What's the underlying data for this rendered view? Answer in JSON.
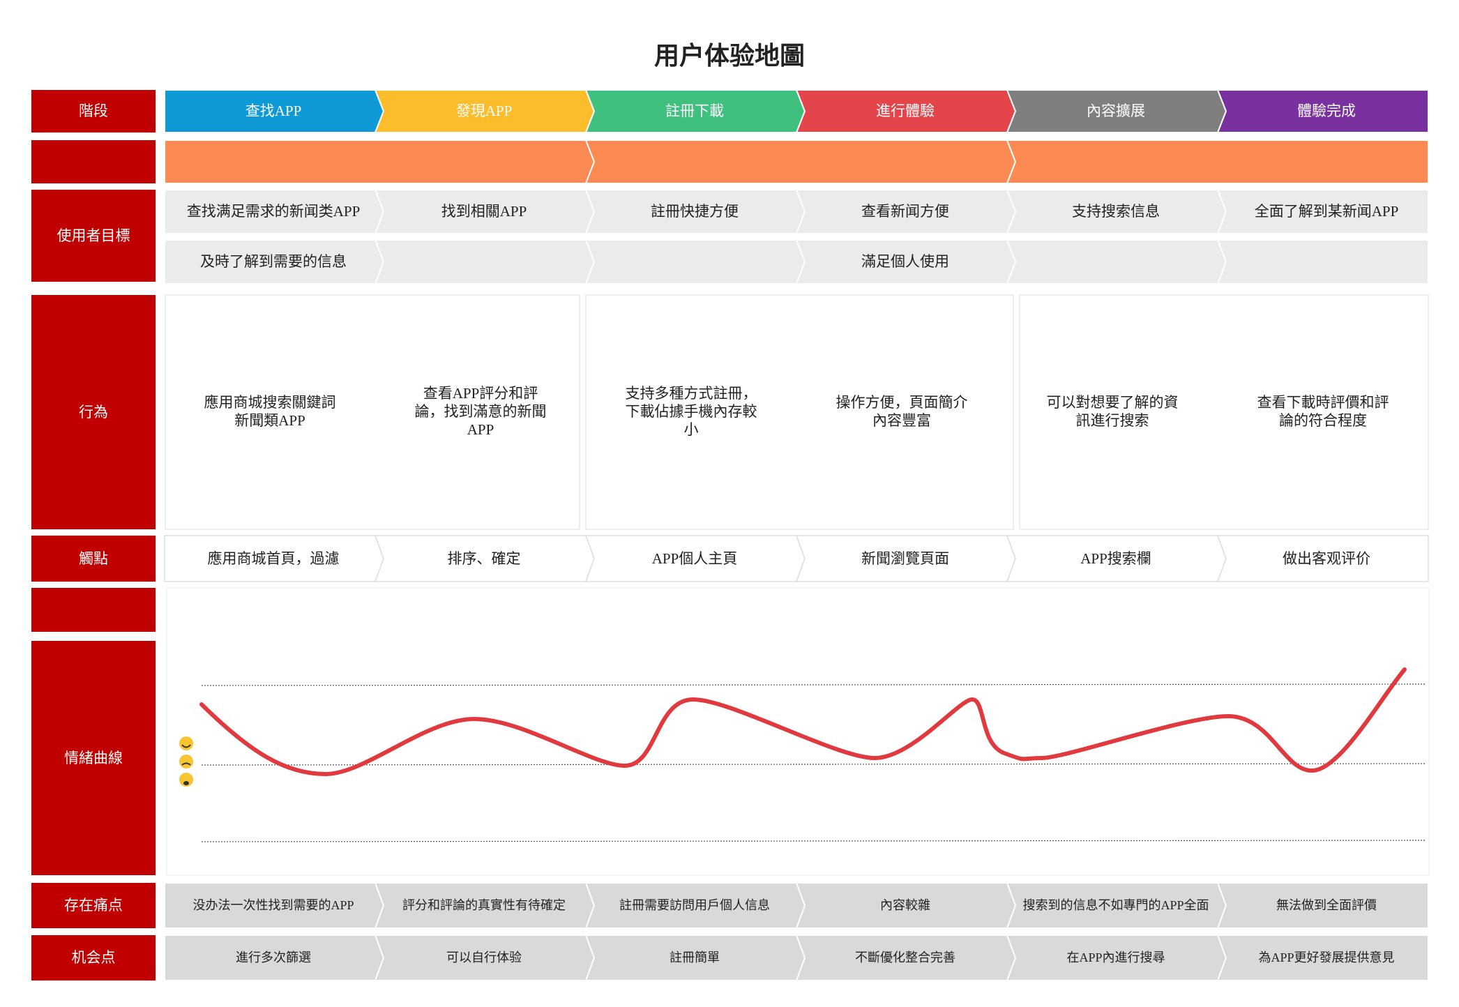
{
  "title": "用户体验地圖",
  "row_labels": {
    "stage": "階段",
    "goals": "使用者目標",
    "actions": "行為",
    "touchpoints": "觸點",
    "emotion": "情緒曲線",
    "pain": "存在痛点",
    "opportunity": "机会点"
  },
  "stages": [
    {
      "name": "查找APP",
      "goals": [
        "查找满足需求的新闻类APP",
        "及時了解到需要的信息"
      ],
      "action": "應用商城搜索關鍵詞新聞類APP",
      "touchpoint": "應用商城首頁，過濾",
      "pain": "没办法一次性找到需要的APP",
      "opportunity": "進行多次篩選"
    },
    {
      "name": "發現APP",
      "goals": [
        "找到相關APP"
      ],
      "action": "查看APP評分和評論，找到滿意的新聞APP",
      "touchpoint": "排序、確定",
      "pain": "評分和評論的真實性有待確定",
      "opportunity": "可以自行体验"
    },
    {
      "name": "註冊下載",
      "goals": [
        "註冊快捷方便"
      ],
      "action": "支持多種方式註冊，下載佔據手機內存較小",
      "touchpoint": "APP個人主頁",
      "pain": "註冊需要訪問用戶個人信息",
      "opportunity": "註冊簡單"
    },
    {
      "name": "進行體驗",
      "goals": [
        "查看新闻方便",
        "滿足個人使用"
      ],
      "action": "操作方便，頁面簡介內容豐富",
      "touchpoint": "新聞瀏覽頁面",
      "pain": "內容較雜",
      "opportunity": "不斷優化整合完善"
    },
    {
      "name": "內容擴展",
      "goals": [
        "支持搜索信息"
      ],
      "action": "可以對想要了解的資訊進行搜索",
      "touchpoint": "APP搜索欄",
      "pain": "搜索到的信息不如專門的APP全面",
      "opportunity": "在APP內進行搜尋"
    },
    {
      "name": "體驗完成",
      "goals": [
        "全面了解到某新闻APP"
      ],
      "action": "查看下載時評價和評論的符合程度",
      "touchpoint": "做出客观评价",
      "pain": "無法做到全面評價",
      "opportunity": "為APP更好發展提供意見"
    }
  ]
}
